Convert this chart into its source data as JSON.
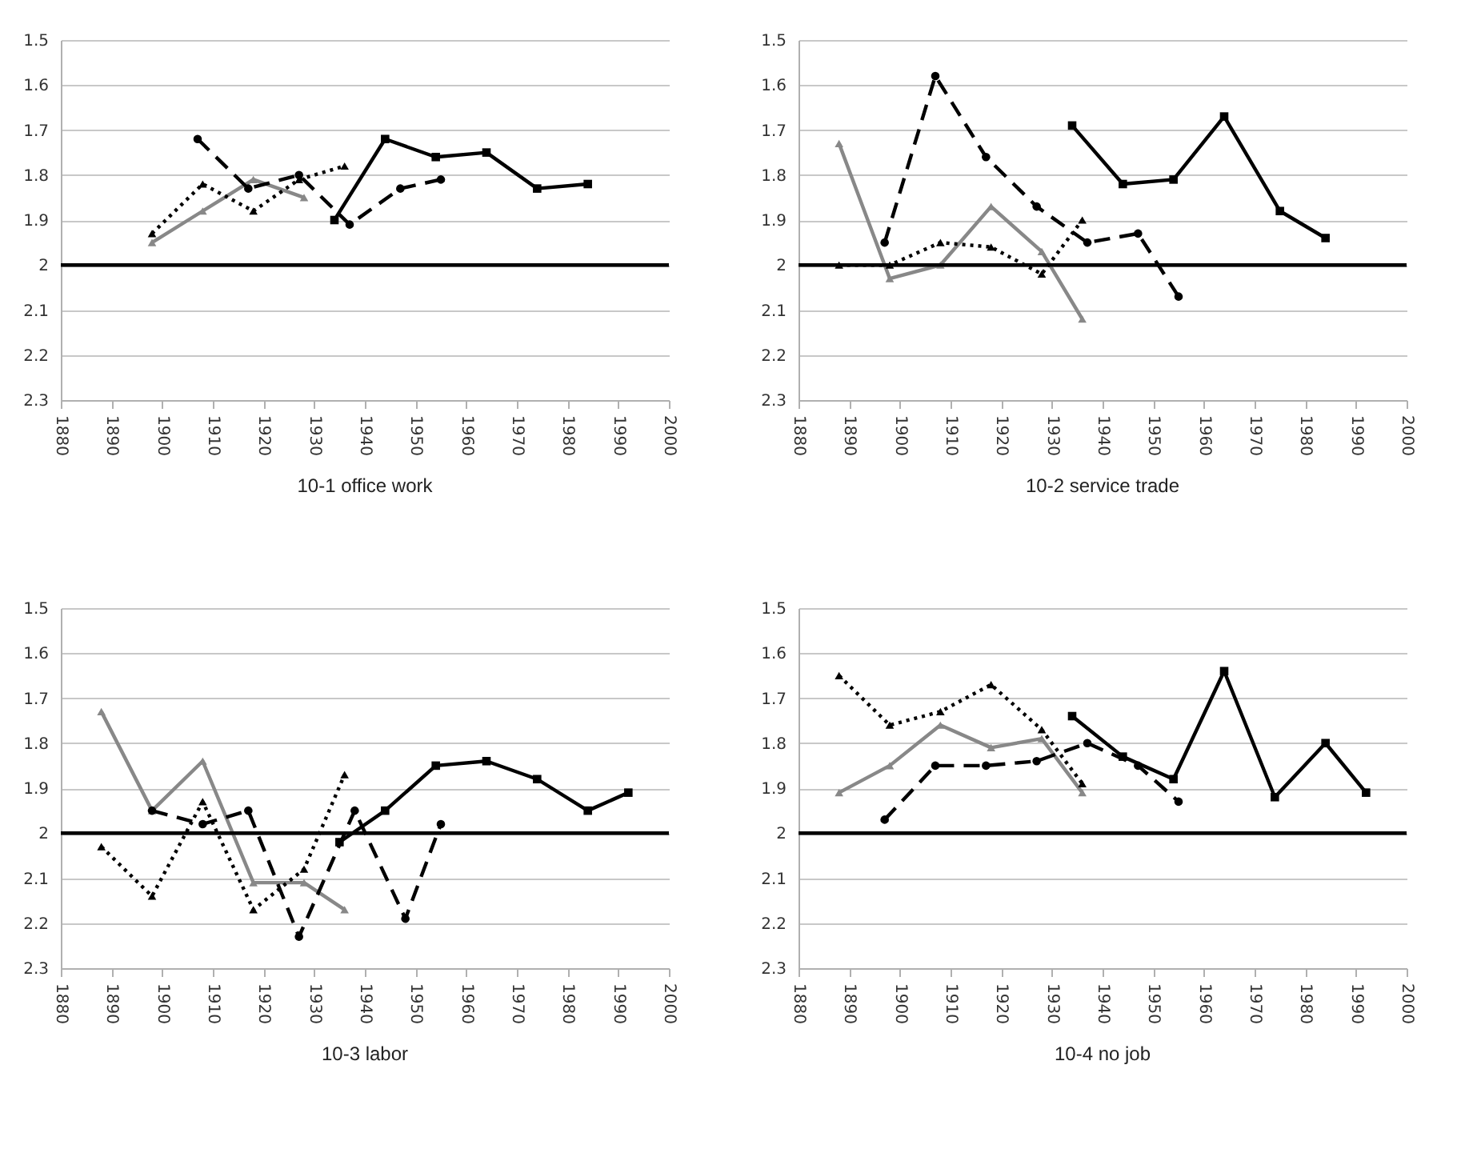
{
  "chart_data": [
    {
      "type": "line",
      "title": "10-1 office work",
      "xlim": [
        1880,
        2000
      ],
      "xticks": [
        1880,
        1890,
        1900,
        1910,
        1920,
        1930,
        1940,
        1950,
        1960,
        1970,
        1980,
        1990,
        2000
      ],
      "ylim": [
        2.3,
        1.5
      ],
      "yticks": [
        1.5,
        1.6,
        1.7,
        1.8,
        1.9,
        2,
        2.1,
        2.2,
        2.3
      ],
      "grid": "y",
      "ref_lines": [
        {
          "axis": "y",
          "value": 2
        }
      ],
      "series": [
        {
          "color": "#888888",
          "marker": "triangle",
          "line_style": "solid",
          "x": [
            1898,
            1908,
            1918,
            1928
          ],
          "values": [
            1.95,
            1.88,
            1.81,
            1.85
          ]
        },
        {
          "color": "#000000",
          "marker": "triangle",
          "line_style": "dotted",
          "x": [
            1898,
            1908,
            1918,
            1927,
            1936
          ],
          "values": [
            1.93,
            1.82,
            1.88,
            1.81,
            1.78
          ]
        },
        {
          "color": "#000000",
          "marker": "circle",
          "line_style": "dashed",
          "x": [
            1907,
            1917,
            1927,
            1937,
            1947,
            1955
          ],
          "values": [
            1.72,
            1.83,
            1.8,
            1.91,
            1.83,
            1.81
          ]
        },
        {
          "color": "#000000",
          "marker": "square",
          "line_style": "solid",
          "x": [
            1934,
            1944,
            1954,
            1964,
            1974,
            1984
          ],
          "values": [
            1.9,
            1.72,
            1.76,
            1.75,
            1.83,
            1.82
          ]
        }
      ]
    },
    {
      "type": "line",
      "title": "10-2 service trade",
      "xlim": [
        1880,
        2000
      ],
      "xticks": [
        1880,
        1890,
        1900,
        1910,
        1920,
        1930,
        1940,
        1950,
        1960,
        1970,
        1980,
        1990,
        2000
      ],
      "ylim": [
        2.3,
        1.5
      ],
      "yticks": [
        1.5,
        1.6,
        1.7,
        1.8,
        1.9,
        2,
        2.1,
        2.2,
        2.3
      ],
      "grid": "y",
      "ref_lines": [
        {
          "axis": "y",
          "value": 2
        }
      ],
      "series": [
        {
          "color": "#888888",
          "marker": "triangle",
          "line_style": "solid",
          "x": [
            1888,
            1898,
            1908,
            1918,
            1928,
            1936
          ],
          "values": [
            1.73,
            2.03,
            2.0,
            1.87,
            1.97,
            2.12
          ]
        },
        {
          "color": "#000000",
          "marker": "triangle",
          "line_style": "dotted",
          "x": [
            1888,
            1898,
            1908,
            1918,
            1928,
            1936
          ],
          "values": [
            2.0,
            2.0,
            1.95,
            1.96,
            2.02,
            1.9
          ]
        },
        {
          "color": "#000000",
          "marker": "circle",
          "line_style": "dashed",
          "x": [
            1897,
            1907,
            1917,
            1927,
            1937,
            1947,
            1955
          ],
          "values": [
            1.95,
            1.58,
            1.76,
            1.87,
            1.95,
            1.93,
            2.07
          ]
        },
        {
          "color": "#000000",
          "marker": "square",
          "line_style": "solid",
          "x": [
            1934,
            1944,
            1954,
            1964,
            1975,
            1984
          ],
          "values": [
            1.69,
            1.82,
            1.81,
            1.67,
            1.88,
            1.94
          ]
        }
      ]
    },
    {
      "type": "line",
      "title": "10-3 labor",
      "xlim": [
        1880,
        2000
      ],
      "xticks": [
        1880,
        1890,
        1900,
        1910,
        1920,
        1930,
        1940,
        1950,
        1960,
        1970,
        1980,
        1990,
        2000
      ],
      "ylim": [
        2.3,
        1.5
      ],
      "yticks": [
        1.5,
        1.6,
        1.7,
        1.8,
        1.9,
        2,
        2.1,
        2.2,
        2.3
      ],
      "grid": "y",
      "ref_lines": [
        {
          "axis": "y",
          "value": 2
        }
      ],
      "series": [
        {
          "color": "#888888",
          "marker": "triangle",
          "line_style": "solid",
          "x": [
            1888,
            1898,
            1908,
            1918,
            1928,
            1936
          ],
          "values": [
            1.73,
            1.95,
            1.84,
            2.11,
            2.11,
            2.17
          ]
        },
        {
          "color": "#000000",
          "marker": "triangle",
          "line_style": "dotted",
          "x": [
            1888,
            1898,
            1908,
            1918,
            1928,
            1936
          ],
          "values": [
            2.03,
            2.14,
            1.93,
            2.17,
            2.08,
            1.87
          ]
        },
        {
          "color": "#000000",
          "marker": "circle",
          "line_style": "dashed",
          "x": [
            1898,
            1908,
            1917,
            1927,
            1938,
            1948,
            1955
          ],
          "values": [
            1.95,
            1.98,
            1.95,
            2.23,
            1.95,
            2.19,
            1.98
          ]
        },
        {
          "color": "#000000",
          "marker": "square",
          "line_style": "solid",
          "x": [
            1935,
            1944,
            1954,
            1964,
            1974,
            1984,
            1992
          ],
          "values": [
            2.02,
            1.95,
            1.85,
            1.84,
            1.88,
            1.95,
            1.91
          ]
        }
      ]
    },
    {
      "type": "line",
      "title": "10-4 no job",
      "xlim": [
        1880,
        2000
      ],
      "xticks": [
        1880,
        1890,
        1900,
        1910,
        1920,
        1930,
        1940,
        1950,
        1960,
        1970,
        1980,
        1990,
        2000
      ],
      "ylim": [
        2.3,
        1.5
      ],
      "yticks": [
        1.5,
        1.6,
        1.7,
        1.8,
        1.9,
        2,
        2.1,
        2.2,
        2.3
      ],
      "grid": "y",
      "ref_lines": [
        {
          "axis": "y",
          "value": 2
        }
      ],
      "series": [
        {
          "color": "#888888",
          "marker": "triangle",
          "line_style": "solid",
          "x": [
            1888,
            1898,
            1908,
            1918,
            1928,
            1936
          ],
          "values": [
            1.91,
            1.85,
            1.76,
            1.81,
            1.79,
            1.91
          ]
        },
        {
          "color": "#000000",
          "marker": "triangle",
          "line_style": "dotted",
          "x": [
            1888,
            1898,
            1908,
            1918,
            1928,
            1936
          ],
          "values": [
            1.65,
            1.76,
            1.73,
            1.67,
            1.77,
            1.89
          ]
        },
        {
          "color": "#000000",
          "marker": "circle",
          "line_style": "dashed",
          "x": [
            1897,
            1907,
            1917,
            1927,
            1937,
            1947,
            1955
          ],
          "values": [
            1.97,
            1.85,
            1.85,
            1.84,
            1.8,
            1.85,
            1.93
          ]
        },
        {
          "color": "#000000",
          "marker": "square",
          "line_style": "solid",
          "x": [
            1934,
            1944,
            1954,
            1964,
            1974,
            1984,
            1992
          ],
          "values": [
            1.74,
            1.83,
            1.88,
            1.64,
            1.92,
            1.8,
            1.91
          ]
        }
      ]
    }
  ]
}
